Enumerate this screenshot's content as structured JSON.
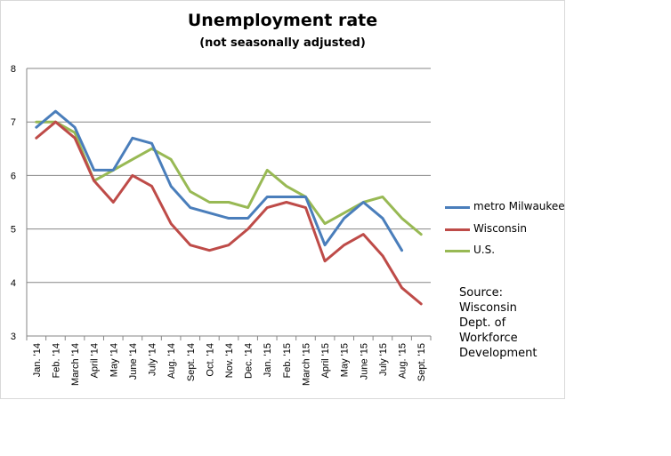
{
  "chart_data": {
    "type": "line",
    "title": "Unemployment rate",
    "subtitle": "(not seasonally adjusted)",
    "xlabel": "",
    "ylabel": "",
    "ylim": [
      3,
      8
    ],
    "yticks": [
      "3",
      "4",
      "5",
      "6",
      "7",
      "8"
    ],
    "grid": true,
    "legend": "right",
    "categories": [
      "Jan. '14",
      "Feb. '14",
      "March '14",
      "April '14",
      "May '14",
      "June '14",
      "July '14",
      "Aug. '14",
      "Sept. '14",
      "Oct. '14",
      "Nov. '14",
      "Dec. '14",
      "Jan. '15",
      "Feb. '15",
      "March '15",
      "April '15",
      "May '15",
      "June '15",
      "July '15",
      "Aug. '15",
      "Sept. '15"
    ],
    "series": [
      {
        "name": "metro Milwaukee",
        "color": "#4a7ebb",
        "values": [
          6.9,
          7.2,
          6.9,
          6.1,
          6.1,
          6.7,
          6.6,
          5.8,
          5.4,
          5.3,
          5.2,
          5.2,
          5.6,
          5.6,
          5.6,
          4.7,
          5.2,
          5.5,
          5.2,
          4.6,
          null
        ]
      },
      {
        "name": "Wisconsin",
        "color": "#be4b48",
        "values": [
          6.7,
          7.0,
          6.7,
          5.9,
          5.5,
          6.0,
          5.8,
          5.1,
          4.7,
          4.6,
          4.7,
          5.0,
          5.4,
          5.5,
          5.4,
          4.4,
          4.7,
          4.9,
          4.5,
          3.9,
          3.6
        ]
      },
      {
        "name": "U.S.",
        "color": "#98b954",
        "values": [
          7.0,
          7.0,
          6.8,
          5.9,
          6.1,
          6.3,
          6.5,
          6.3,
          5.7,
          5.5,
          5.5,
          5.4,
          6.1,
          5.8,
          5.6,
          5.1,
          5.3,
          5.5,
          5.6,
          5.2,
          4.9
        ]
      }
    ],
    "source_lines": [
      "Source:",
      "Wisconsin",
      "Dept. of",
      "Workforce",
      "Development"
    ]
  }
}
